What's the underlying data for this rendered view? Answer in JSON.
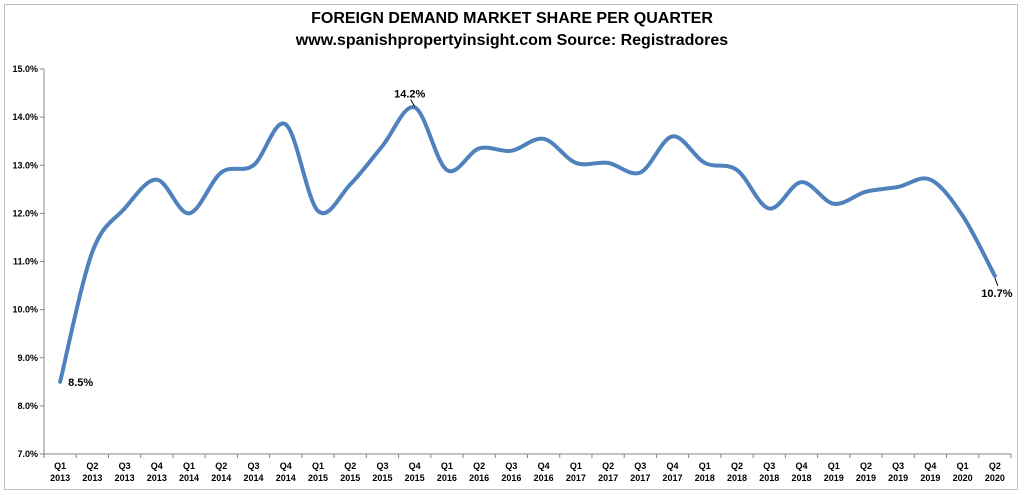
{
  "chart_data": {
    "type": "line",
    "title": "FOREIGN DEMAND MARKET SHARE PER QUARTER",
    "subtitle": "www.spanishpropertyinsight.com Source: Registradores",
    "xlabel": "",
    "ylabel": "",
    "ylim": [
      7.0,
      15.0
    ],
    "yticks": [
      "7.0%",
      "8.0%",
      "9.0%",
      "10.0%",
      "11.0%",
      "12.0%",
      "13.0%",
      "14.0%",
      "15.0%"
    ],
    "grid": false,
    "line_color": "#4f81bd",
    "categories": [
      [
        "Q1",
        "2013"
      ],
      [
        "Q2",
        "2013"
      ],
      [
        "Q3",
        "2013"
      ],
      [
        "Q4",
        "2013"
      ],
      [
        "Q1",
        "2014"
      ],
      [
        "Q2",
        "2014"
      ],
      [
        "Q3",
        "2014"
      ],
      [
        "Q4",
        "2014"
      ],
      [
        "Q1",
        "2015"
      ],
      [
        "Q2",
        "2015"
      ],
      [
        "Q3",
        "2015"
      ],
      [
        "Q4",
        "2015"
      ],
      [
        "Q1",
        "2016"
      ],
      [
        "Q2",
        "2016"
      ],
      [
        "Q3",
        "2016"
      ],
      [
        "Q4",
        "2016"
      ],
      [
        "Q1",
        "2017"
      ],
      [
        "Q2",
        "2017"
      ],
      [
        "Q3",
        "2017"
      ],
      [
        "Q4",
        "2017"
      ],
      [
        "Q1",
        "2018"
      ],
      [
        "Q2",
        "2018"
      ],
      [
        "Q3",
        "2018"
      ],
      [
        "Q4",
        "2018"
      ],
      [
        "Q1",
        "2019"
      ],
      [
        "Q2",
        "2019"
      ],
      [
        "Q3",
        "2019"
      ],
      [
        "Q4",
        "2019"
      ],
      [
        "Q1",
        "2020"
      ],
      [
        "Q2",
        "2020"
      ]
    ],
    "values": [
      8.5,
      11.2,
      12.1,
      12.7,
      12.0,
      12.85,
      13.0,
      13.85,
      12.05,
      12.6,
      13.4,
      14.2,
      12.9,
      13.35,
      13.3,
      13.55,
      13.05,
      13.05,
      12.85,
      13.6,
      13.05,
      12.9,
      12.1,
      12.65,
      12.2,
      12.45,
      12.55,
      12.7,
      11.95,
      10.7
    ],
    "data_labels": [
      {
        "index": 0,
        "text": "8.5%"
      },
      {
        "index": 11,
        "text": "14.2%"
      },
      {
        "index": 29,
        "text": "10.7%"
      }
    ]
  }
}
